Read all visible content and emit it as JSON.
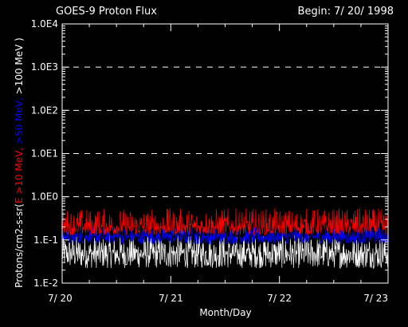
{
  "chart_data": {
    "type": "line",
    "title": "GOES-9 Proton Flux",
    "subtitle": "Begin: 7/ 20/ 1998",
    "xlabel": "Month/Day",
    "ylabel_parts": [
      {
        "text": "Protons/cm2-s-sr(",
        "color": "#ffffff"
      },
      {
        "text": "E >10 MeV, ",
        "color": "#ff0000"
      },
      {
        "text": ">50 MeV, ",
        "color": "#0000ff"
      },
      {
        "text": ">100 MeV )",
        "color": "#ffffff"
      }
    ],
    "y_scale": "log",
    "ylim": [
      0.01,
      10000
    ],
    "y_ticks": [
      {
        "value": 0.01,
        "label": "1.E-2"
      },
      {
        "value": 0.1,
        "label": "1.E-1"
      },
      {
        "value": 1,
        "label": "1.0E0"
      },
      {
        "value": 10,
        "label": "1.0E1"
      },
      {
        "value": 100,
        "label": "1.0E2"
      },
      {
        "value": 1000,
        "label": "1.0E3"
      },
      {
        "value": 10000,
        "label": "1.0E4"
      }
    ],
    "dashed_gridlines": [
      1,
      10,
      100,
      1000
    ],
    "xlim": [
      "7/20",
      "7/23"
    ],
    "x_ticks": [
      {
        "value": "7/20",
        "label": "7/ 20"
      },
      {
        "value": "7/21",
        "label": "7/ 21"
      },
      {
        "value": "7/22",
        "label": "7/ 22"
      },
      {
        "value": "7/23",
        "label": "7/ 23"
      }
    ],
    "series": [
      {
        "name": ">10 MeV",
        "color": "#ff0000",
        "typical": 0.2,
        "noise_min": 0.13,
        "noise_max": 0.55
      },
      {
        "name": ">50 MeV",
        "color": "#0000ff",
        "typical": 0.12,
        "noise_min": 0.08,
        "noise_max": 0.2
      },
      {
        "name": ">100 MeV",
        "color": "#ffffff",
        "typical": 0.05,
        "noise_min": 0.022,
        "noise_max": 0.13
      }
    ]
  }
}
